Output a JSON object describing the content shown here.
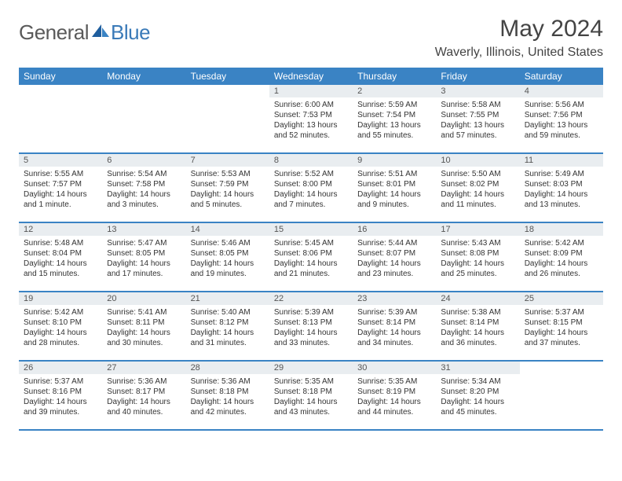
{
  "logo": {
    "general": "General",
    "blue": "Blue"
  },
  "title": "May 2024",
  "location": "Waverly, Illinois, United States",
  "colors": {
    "header_bar": "#3a83c4",
    "daynum_band": "#e9edf0",
    "logo_gray": "#5a5a5a",
    "logo_blue": "#3a7ab8"
  },
  "day_headers": [
    "Sunday",
    "Monday",
    "Tuesday",
    "Wednesday",
    "Thursday",
    "Friday",
    "Saturday"
  ],
  "weeks": [
    [
      {
        "day": "",
        "sunrise": "",
        "sunset": "",
        "daylight": ""
      },
      {
        "day": "",
        "sunrise": "",
        "sunset": "",
        "daylight": ""
      },
      {
        "day": "",
        "sunrise": "",
        "sunset": "",
        "daylight": ""
      },
      {
        "day": "1",
        "sunrise": "Sunrise: 6:00 AM",
        "sunset": "Sunset: 7:53 PM",
        "daylight": "Daylight: 13 hours and 52 minutes."
      },
      {
        "day": "2",
        "sunrise": "Sunrise: 5:59 AM",
        "sunset": "Sunset: 7:54 PM",
        "daylight": "Daylight: 13 hours and 55 minutes."
      },
      {
        "day": "3",
        "sunrise": "Sunrise: 5:58 AM",
        "sunset": "Sunset: 7:55 PM",
        "daylight": "Daylight: 13 hours and 57 minutes."
      },
      {
        "day": "4",
        "sunrise": "Sunrise: 5:56 AM",
        "sunset": "Sunset: 7:56 PM",
        "daylight": "Daylight: 13 hours and 59 minutes."
      }
    ],
    [
      {
        "day": "5",
        "sunrise": "Sunrise: 5:55 AM",
        "sunset": "Sunset: 7:57 PM",
        "daylight": "Daylight: 14 hours and 1 minute."
      },
      {
        "day": "6",
        "sunrise": "Sunrise: 5:54 AM",
        "sunset": "Sunset: 7:58 PM",
        "daylight": "Daylight: 14 hours and 3 minutes."
      },
      {
        "day": "7",
        "sunrise": "Sunrise: 5:53 AM",
        "sunset": "Sunset: 7:59 PM",
        "daylight": "Daylight: 14 hours and 5 minutes."
      },
      {
        "day": "8",
        "sunrise": "Sunrise: 5:52 AM",
        "sunset": "Sunset: 8:00 PM",
        "daylight": "Daylight: 14 hours and 7 minutes."
      },
      {
        "day": "9",
        "sunrise": "Sunrise: 5:51 AM",
        "sunset": "Sunset: 8:01 PM",
        "daylight": "Daylight: 14 hours and 9 minutes."
      },
      {
        "day": "10",
        "sunrise": "Sunrise: 5:50 AM",
        "sunset": "Sunset: 8:02 PM",
        "daylight": "Daylight: 14 hours and 11 minutes."
      },
      {
        "day": "11",
        "sunrise": "Sunrise: 5:49 AM",
        "sunset": "Sunset: 8:03 PM",
        "daylight": "Daylight: 14 hours and 13 minutes."
      }
    ],
    [
      {
        "day": "12",
        "sunrise": "Sunrise: 5:48 AM",
        "sunset": "Sunset: 8:04 PM",
        "daylight": "Daylight: 14 hours and 15 minutes."
      },
      {
        "day": "13",
        "sunrise": "Sunrise: 5:47 AM",
        "sunset": "Sunset: 8:05 PM",
        "daylight": "Daylight: 14 hours and 17 minutes."
      },
      {
        "day": "14",
        "sunrise": "Sunrise: 5:46 AM",
        "sunset": "Sunset: 8:05 PM",
        "daylight": "Daylight: 14 hours and 19 minutes."
      },
      {
        "day": "15",
        "sunrise": "Sunrise: 5:45 AM",
        "sunset": "Sunset: 8:06 PM",
        "daylight": "Daylight: 14 hours and 21 minutes."
      },
      {
        "day": "16",
        "sunrise": "Sunrise: 5:44 AM",
        "sunset": "Sunset: 8:07 PM",
        "daylight": "Daylight: 14 hours and 23 minutes."
      },
      {
        "day": "17",
        "sunrise": "Sunrise: 5:43 AM",
        "sunset": "Sunset: 8:08 PM",
        "daylight": "Daylight: 14 hours and 25 minutes."
      },
      {
        "day": "18",
        "sunrise": "Sunrise: 5:42 AM",
        "sunset": "Sunset: 8:09 PM",
        "daylight": "Daylight: 14 hours and 26 minutes."
      }
    ],
    [
      {
        "day": "19",
        "sunrise": "Sunrise: 5:42 AM",
        "sunset": "Sunset: 8:10 PM",
        "daylight": "Daylight: 14 hours and 28 minutes."
      },
      {
        "day": "20",
        "sunrise": "Sunrise: 5:41 AM",
        "sunset": "Sunset: 8:11 PM",
        "daylight": "Daylight: 14 hours and 30 minutes."
      },
      {
        "day": "21",
        "sunrise": "Sunrise: 5:40 AM",
        "sunset": "Sunset: 8:12 PM",
        "daylight": "Daylight: 14 hours and 31 minutes."
      },
      {
        "day": "22",
        "sunrise": "Sunrise: 5:39 AM",
        "sunset": "Sunset: 8:13 PM",
        "daylight": "Daylight: 14 hours and 33 minutes."
      },
      {
        "day": "23",
        "sunrise": "Sunrise: 5:39 AM",
        "sunset": "Sunset: 8:14 PM",
        "daylight": "Daylight: 14 hours and 34 minutes."
      },
      {
        "day": "24",
        "sunrise": "Sunrise: 5:38 AM",
        "sunset": "Sunset: 8:14 PM",
        "daylight": "Daylight: 14 hours and 36 minutes."
      },
      {
        "day": "25",
        "sunrise": "Sunrise: 5:37 AM",
        "sunset": "Sunset: 8:15 PM",
        "daylight": "Daylight: 14 hours and 37 minutes."
      }
    ],
    [
      {
        "day": "26",
        "sunrise": "Sunrise: 5:37 AM",
        "sunset": "Sunset: 8:16 PM",
        "daylight": "Daylight: 14 hours and 39 minutes."
      },
      {
        "day": "27",
        "sunrise": "Sunrise: 5:36 AM",
        "sunset": "Sunset: 8:17 PM",
        "daylight": "Daylight: 14 hours and 40 minutes."
      },
      {
        "day": "28",
        "sunrise": "Sunrise: 5:36 AM",
        "sunset": "Sunset: 8:18 PM",
        "daylight": "Daylight: 14 hours and 42 minutes."
      },
      {
        "day": "29",
        "sunrise": "Sunrise: 5:35 AM",
        "sunset": "Sunset: 8:18 PM",
        "daylight": "Daylight: 14 hours and 43 minutes."
      },
      {
        "day": "30",
        "sunrise": "Sunrise: 5:35 AM",
        "sunset": "Sunset: 8:19 PM",
        "daylight": "Daylight: 14 hours and 44 minutes."
      },
      {
        "day": "31",
        "sunrise": "Sunrise: 5:34 AM",
        "sunset": "Sunset: 8:20 PM",
        "daylight": "Daylight: 14 hours and 45 minutes."
      },
      {
        "day": "",
        "sunrise": "",
        "sunset": "",
        "daylight": ""
      }
    ]
  ]
}
